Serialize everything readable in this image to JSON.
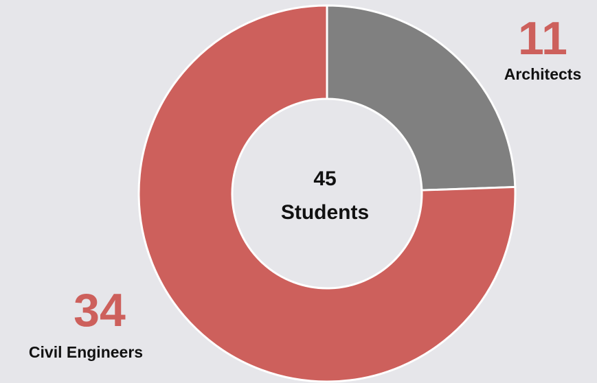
{
  "chart_data": {
    "type": "pie",
    "variant": "donut",
    "categories": [
      "Architects",
      "Civil Engineers"
    ],
    "values": [
      11,
      34
    ],
    "colors": [
      "#808080",
      "#cd605c"
    ],
    "total": 45,
    "center_number": "45",
    "center_label": "Students",
    "title": "",
    "legend": "none"
  },
  "labels": {
    "architects": {
      "value": "11",
      "name": "Architects"
    },
    "civil": {
      "value": "34",
      "name": "Civil Engineers"
    }
  },
  "colors": {
    "accent": "#cd605c",
    "neutral": "#808080",
    "background": "#e6e6ea",
    "text": "#111111"
  }
}
